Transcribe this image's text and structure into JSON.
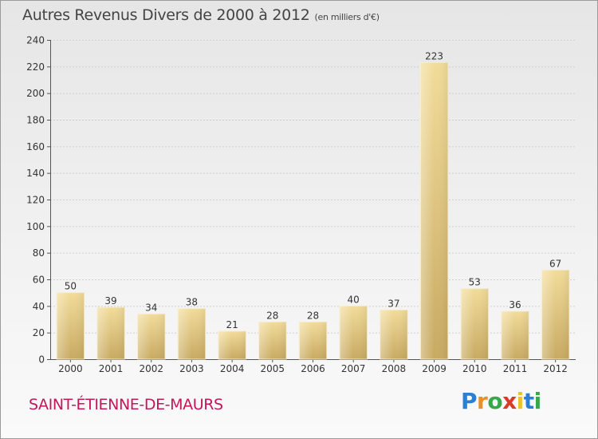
{
  "title": "Autres Revenus Divers de 2000 à 2012",
  "unit_note": "(en milliers d'€)",
  "location": "SAINT-ÉTIENNE-DE-MAURS",
  "logo": {
    "letters": [
      "P",
      "r",
      "o",
      "x",
      "i",
      "t",
      "i"
    ],
    "colors": [
      "#2b7fd4",
      "#e8902a",
      "#3aa64a",
      "#d93a2b",
      "#e8c42a",
      "#2b7fd4",
      "#3aa64a"
    ]
  },
  "chart_data": {
    "type": "bar",
    "categories": [
      "2000",
      "2001",
      "2002",
      "2003",
      "2004",
      "2005",
      "2006",
      "2007",
      "2008",
      "2009",
      "2010",
      "2011",
      "2012"
    ],
    "values": [
      50,
      39,
      34,
      38,
      21,
      28,
      28,
      40,
      37,
      223,
      53,
      36,
      67
    ],
    "ylim": [
      0,
      240
    ],
    "yticks": [
      0,
      20,
      40,
      60,
      80,
      100,
      120,
      140,
      160,
      180,
      200,
      220,
      240
    ],
    "grid": true,
    "bar_color": "#e3c47d",
    "data_labels": true
  }
}
